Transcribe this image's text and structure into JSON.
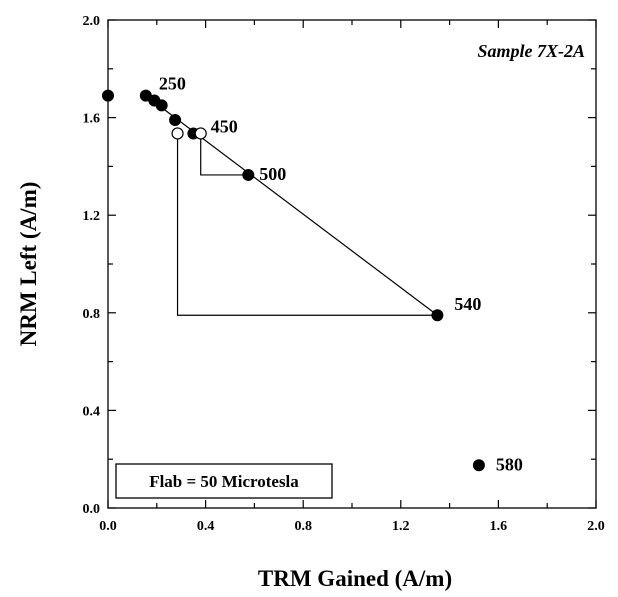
{
  "chart_data": {
    "type": "scatter",
    "title": "Sample 7X-2A",
    "xlabel": "TRM Gained (A/m)",
    "ylabel": "NRM Left (A/m)",
    "xlim": [
      0.0,
      2.0
    ],
    "ylim": [
      0.0,
      2.0
    ],
    "x_ticks": [
      "0.0",
      "0.4",
      "0.8",
      "1.2",
      "1.6",
      "2.0"
    ],
    "y_ticks": [
      "0.0",
      "0.4",
      "0.8",
      "1.2",
      "1.6",
      "2.0"
    ],
    "annotation_box": "Flab = 50 Microtesla",
    "points_filled": [
      {
        "x": 0.0,
        "y": 1.69
      },
      {
        "x": 0.155,
        "y": 1.69
      },
      {
        "x": 0.19,
        "y": 1.67
      },
      {
        "x": 0.22,
        "y": 1.65
      },
      {
        "x": 0.275,
        "y": 1.59
      },
      {
        "x": 0.35,
        "y": 1.535
      },
      {
        "x": 0.575,
        "y": 1.365
      },
      {
        "x": 1.35,
        "y": 0.79
      },
      {
        "x": 1.52,
        "y": 0.175
      }
    ],
    "points_open": [
      {
        "x": 0.285,
        "y": 1.535
      },
      {
        "x": 0.38,
        "y": 1.535
      }
    ],
    "point_labels": [
      {
        "text": "250",
        "x": 0.155,
        "y": 1.69
      },
      {
        "text": "450",
        "x": 0.38,
        "y": 1.535
      },
      {
        "text": "500",
        "x": 0.575,
        "y": 1.365
      },
      {
        "text": "540",
        "x": 1.35,
        "y": 0.79
      },
      {
        "text": "580",
        "x": 1.52,
        "y": 0.175
      }
    ],
    "fit_line": [
      {
        "x": 0.155,
        "y": 1.69
      },
      {
        "x": 1.35,
        "y": 0.79
      }
    ],
    "checks": [
      [
        {
          "x": 0.575,
          "y": 1.365
        },
        {
          "x": 0.38,
          "y": 1.365
        },
        {
          "x": 0.38,
          "y": 1.535
        }
      ],
      [
        {
          "x": 1.35,
          "y": 0.79
        },
        {
          "x": 0.285,
          "y": 0.79
        },
        {
          "x": 0.285,
          "y": 1.535
        }
      ]
    ]
  }
}
